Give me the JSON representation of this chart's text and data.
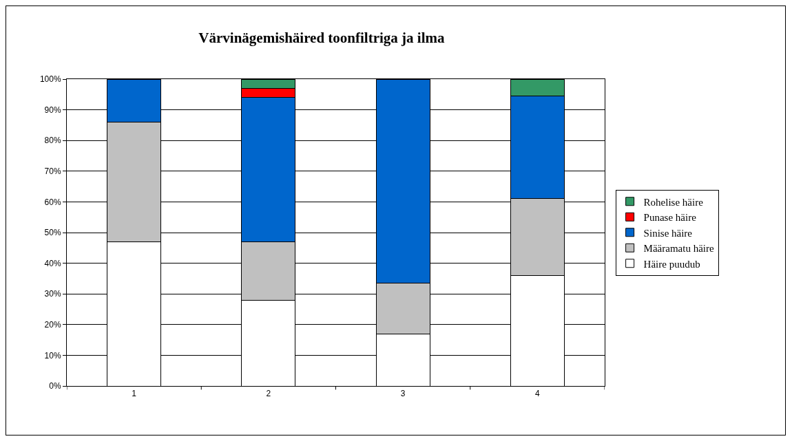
{
  "chart_data": {
    "type": "bar",
    "title": "Värvinägemishäired toonfiltriga ja ilma",
    "categories": [
      "1",
      "2",
      "3",
      "4"
    ],
    "stacked": true,
    "series": [
      {
        "name": "Häire puudub",
        "color": "#ffffff",
        "values": [
          47,
          28,
          17,
          36
        ]
      },
      {
        "name": "Määramatu häire",
        "color": "#c0c0c0",
        "values": [
          39,
          19,
          16.5,
          25
        ]
      },
      {
        "name": "Sinise häire",
        "color": "#0066cc",
        "values": [
          14,
          47,
          66.5,
          33.4
        ]
      },
      {
        "name": "Punase häire",
        "color": "#ff0000",
        "values": [
          null,
          3,
          null,
          null
        ]
      },
      {
        "name": "Rohelise häire",
        "color": "#339966",
        "values": [
          null,
          3,
          null,
          5.6
        ]
      }
    ],
    "ylim": [
      0,
      100
    ],
    "yticks": [
      {
        "value": 0,
        "label": "0%"
      },
      {
        "value": 10,
        "label": "10%"
      },
      {
        "value": 20,
        "label": "20%"
      },
      {
        "value": 30,
        "label": "30%"
      },
      {
        "value": 40,
        "label": "40%"
      },
      {
        "value": 50,
        "label": "50%"
      },
      {
        "value": 60,
        "label": "60%"
      },
      {
        "value": 70,
        "label": "70%"
      },
      {
        "value": 80,
        "label": "80%"
      },
      {
        "value": 90,
        "label": "90%"
      },
      {
        "value": 100,
        "label": "100%"
      }
    ],
    "grid": "y",
    "legend": "right"
  }
}
